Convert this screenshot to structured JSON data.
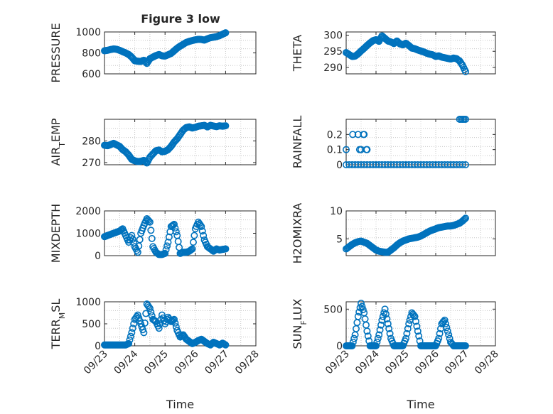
{
  "figure": {
    "title": "Figure 3 low",
    "series_color": "#0072BD",
    "axis_color": "#262626",
    "grid": "dotted minor grid on",
    "x_axis": {
      "label": "Time",
      "ticks": [
        "09/23",
        "09/24",
        "09/25",
        "09/26",
        "09/27",
        "09/28"
      ],
      "range_days": [
        0,
        5
      ],
      "note": "days measured from 09/23"
    }
  },
  "chart_data": [
    {
      "type": "scatter",
      "ylabel": "PRESSURE",
      "ylim": [
        600,
        1000
      ],
      "yticks": [
        "600",
        "800",
        "1000"
      ],
      "grid": true,
      "marker": "open-circle",
      "x": [
        0.0,
        0.1,
        0.2,
        0.3,
        0.4,
        0.5,
        0.6,
        0.7,
        0.8,
        0.9,
        1.0,
        1.1,
        1.2,
        1.3,
        1.4,
        1.5,
        1.6,
        1.7,
        1.8,
        1.9,
        2.0,
        2.1,
        2.2,
        2.3,
        2.4,
        2.5,
        2.6,
        2.7,
        2.8,
        2.9,
        3.0,
        3.1,
        3.2,
        3.3,
        3.4,
        3.5,
        3.6,
        3.7,
        3.8,
        3.9,
        4.0
      ],
      "values": [
        820,
        825,
        832,
        838,
        835,
        825,
        812,
        800,
        785,
        760,
        725,
        720,
        718,
        730,
        700,
        745,
        760,
        775,
        785,
        772,
        770,
        782,
        795,
        820,
        845,
        865,
        882,
        900,
        910,
        918,
        925,
        930,
        928,
        922,
        935,
        945,
        950,
        955,
        965,
        978,
        992
      ]
    },
    {
      "type": "scatter",
      "ylabel": "THETA",
      "ylim": [
        288,
        301
      ],
      "yticks": [
        "290",
        "295",
        "300"
      ],
      "grid": true,
      "marker": "open-circle",
      "x": [
        0.0,
        0.1,
        0.2,
        0.3,
        0.4,
        0.5,
        0.6,
        0.7,
        0.8,
        0.9,
        1.0,
        1.1,
        1.2,
        1.3,
        1.4,
        1.5,
        1.6,
        1.7,
        1.8,
        1.9,
        2.0,
        2.1,
        2.2,
        2.3,
        2.4,
        2.5,
        2.6,
        2.7,
        2.8,
        2.9,
        3.0,
        3.1,
        3.2,
        3.3,
        3.4,
        3.5,
        3.6,
        3.7,
        3.8,
        3.9,
        4.0
      ],
      "values": [
        294.6,
        294.0,
        293.4,
        293.5,
        294.2,
        295.1,
        295.9,
        296.8,
        297.6,
        298.3,
        298.6,
        298.1,
        299.8,
        299.0,
        298.2,
        297.9,
        297.4,
        298.2,
        297.3,
        297.0,
        297.5,
        296.8,
        296.0,
        295.8,
        295.4,
        295.1,
        294.8,
        294.4,
        294.1,
        293.9,
        293.4,
        293.6,
        293.2,
        293.0,
        292.8,
        292.6,
        292.9,
        292.7,
        292.0,
        290.6,
        288.7
      ]
    },
    {
      "type": "scatter",
      "ylabel": "AIR_TEMP",
      "ylim": [
        269,
        290
      ],
      "yticks": [
        "270",
        "280"
      ],
      "grid": true,
      "marker": "open-circle",
      "x": [
        0.0,
        0.1,
        0.2,
        0.3,
        0.4,
        0.5,
        0.6,
        0.7,
        0.8,
        0.9,
        1.0,
        1.1,
        1.2,
        1.3,
        1.4,
        1.5,
        1.6,
        1.7,
        1.8,
        1.9,
        2.0,
        2.1,
        2.2,
        2.3,
        2.4,
        2.5,
        2.6,
        2.7,
        2.8,
        2.9,
        3.0,
        3.1,
        3.2,
        3.3,
        3.4,
        3.5,
        3.6,
        3.7,
        3.8,
        3.9,
        4.0
      ],
      "values": [
        278.0,
        277.8,
        278.3,
        278.9,
        278.2,
        277.5,
        276.0,
        275.0,
        273.5,
        271.5,
        270.8,
        270.5,
        270.6,
        271.0,
        269.8,
        272.5,
        274.0,
        275.5,
        275.8,
        275.0,
        275.2,
        276.0,
        277.5,
        279.5,
        281.0,
        283.0,
        285.0,
        286.2,
        286.5,
        286.0,
        286.3,
        286.8,
        287.0,
        287.2,
        286.5,
        287.2,
        286.9,
        286.6,
        287.0,
        286.8,
        287.0
      ]
    },
    {
      "type": "scatter",
      "ylabel": "RAINFALL",
      "ylim": [
        0,
        0.3
      ],
      "yticks": [
        "0",
        "0.1",
        "0.2"
      ],
      "grid": true,
      "marker": "open-circle",
      "x": [
        0.0,
        0.1,
        0.2,
        0.3,
        0.4,
        0.5,
        0.6,
        0.7,
        0.8,
        0.9,
        1.0,
        1.1,
        1.2,
        1.3,
        1.4,
        1.5,
        1.6,
        1.7,
        1.8,
        1.9,
        2.0,
        2.1,
        2.2,
        2.3,
        2.4,
        2.5,
        2.6,
        2.7,
        2.8,
        2.9,
        3.0,
        3.1,
        3.2,
        3.3,
        3.4,
        3.5,
        3.6,
        3.7,
        3.8,
        3.9,
        4.0,
        0.0,
        0.22,
        0.4,
        0.45,
        0.5,
        0.58,
        0.6,
        0.68,
        0.7,
        3.8,
        3.85,
        3.9,
        3.95,
        4.0
      ],
      "values": [
        0,
        0,
        0,
        0,
        0,
        0,
        0,
        0,
        0,
        0,
        0,
        0,
        0,
        0,
        0,
        0,
        0,
        0,
        0,
        0,
        0,
        0,
        0,
        0,
        0,
        0,
        0,
        0,
        0,
        0,
        0,
        0,
        0,
        0,
        0,
        0,
        0,
        0,
        0,
        0,
        0,
        0.1,
        0.2,
        0.2,
        0.1,
        0.1,
        0.2,
        0.2,
        0.1,
        0.1,
        0.3,
        0.3,
        0.3,
        0.3,
        0.3
      ]
    },
    {
      "type": "scatter",
      "ylabel": "MIXDEPTH",
      "ylim": [
        0,
        2000
      ],
      "yticks": [
        "0",
        "1000",
        "2000"
      ],
      "grid": true,
      "marker": "open-circle",
      "x": [
        0.0,
        0.1,
        0.2,
        0.3,
        0.4,
        0.5,
        0.6,
        0.7,
        0.8,
        0.9,
        1.0,
        1.1,
        1.2,
        1.3,
        1.4,
        1.5,
        1.6,
        1.7,
        1.8,
        1.9,
        2.0,
        2.1,
        2.2,
        2.3,
        2.4,
        2.5,
        2.6,
        2.7,
        2.8,
        2.9,
        3.0,
        3.1,
        3.2,
        3.3,
        3.4,
        3.5,
        3.6,
        3.7,
        3.8,
        3.9,
        4.0
      ],
      "values": [
        850,
        900,
        950,
        1000,
        1050,
        1100,
        1200,
        900,
        600,
        900,
        400,
        150,
        1000,
        1350,
        1650,
        1500,
        400,
        150,
        50,
        50,
        100,
        600,
        1300,
        1400,
        900,
        100,
        150,
        150,
        200,
        300,
        1200,
        1500,
        1300,
        700,
        400,
        300,
        200,
        300,
        250,
        280,
        300
      ]
    },
    {
      "type": "scatter",
      "ylabel": "H2OMIXRA",
      "ylim": [
        2,
        10
      ],
      "yticks": [
        "5",
        "10"
      ],
      "grid": true,
      "marker": "open-circle",
      "x": [
        0.0,
        0.1,
        0.2,
        0.3,
        0.4,
        0.5,
        0.6,
        0.7,
        0.8,
        0.9,
        1.0,
        1.1,
        1.2,
        1.3,
        1.4,
        1.5,
        1.6,
        1.7,
        1.8,
        1.9,
        2.0,
        2.1,
        2.2,
        2.3,
        2.4,
        2.5,
        2.6,
        2.7,
        2.8,
        2.9,
        3.0,
        3.1,
        3.2,
        3.3,
        3.4,
        3.5,
        3.6,
        3.7,
        3.8,
        3.9,
        4.0
      ],
      "values": [
        3.2,
        3.6,
        4.0,
        4.3,
        4.5,
        4.6,
        4.4,
        4.2,
        3.8,
        3.4,
        3.0,
        2.8,
        2.7,
        2.6,
        2.6,
        3.0,
        3.4,
        3.9,
        4.3,
        4.6,
        4.8,
        5.0,
        5.1,
        5.2,
        5.3,
        5.5,
        5.8,
        6.1,
        6.4,
        6.6,
        6.8,
        7.0,
        7.1,
        7.2,
        7.3,
        7.3,
        7.4,
        7.6,
        7.8,
        8.2,
        8.7
      ]
    },
    {
      "type": "scatter",
      "ylabel": "TERR_MSL",
      "ylim": [
        0,
        1000
      ],
      "yticks": [
        "0",
        "500",
        "1000"
      ],
      "grid": true,
      "marker": "open-circle",
      "x": [
        0.0,
        0.1,
        0.2,
        0.3,
        0.4,
        0.5,
        0.6,
        0.7,
        0.8,
        0.9,
        1.0,
        1.1,
        1.2,
        1.3,
        1.4,
        1.5,
        1.6,
        1.7,
        1.8,
        1.9,
        2.0,
        2.1,
        2.2,
        2.3,
        2.4,
        2.5,
        2.6,
        2.7,
        2.8,
        2.9,
        3.0,
        3.1,
        3.2,
        3.3,
        3.4,
        3.5,
        3.6,
        3.7,
        3.8,
        3.9,
        4.0
      ],
      "values": [
        20,
        20,
        20,
        20,
        20,
        20,
        20,
        20,
        50,
        300,
        600,
        700,
        500,
        300,
        950,
        850,
        600,
        550,
        400,
        700,
        500,
        650,
        550,
        600,
        350,
        200,
        250,
        150,
        100,
        50,
        80,
        120,
        150,
        100,
        50,
        20,
        80,
        50,
        20,
        60,
        20
      ]
    },
    {
      "type": "scatter",
      "ylabel": "SUN_FLUX",
      "ylim": [
        0,
        600
      ],
      "yticks": [
        "0",
        "500"
      ],
      "grid": true,
      "marker": "open-circle",
      "x": [
        0.0,
        0.1,
        0.2,
        0.3,
        0.4,
        0.5,
        0.6,
        0.7,
        0.8,
        0.9,
        1.0,
        1.1,
        1.2,
        1.3,
        1.4,
        1.5,
        1.6,
        1.7,
        1.8,
        1.9,
        2.0,
        2.1,
        2.2,
        2.3,
        2.4,
        2.5,
        2.6,
        2.7,
        2.8,
        2.9,
        3.0,
        3.1,
        3.2,
        3.3,
        3.4,
        3.5,
        3.6,
        3.7,
        3.8,
        3.9,
        4.0
      ],
      "values": [
        0,
        0,
        0,
        150,
        400,
        580,
        450,
        200,
        0,
        0,
        0,
        150,
        350,
        500,
        300,
        100,
        0,
        0,
        0,
        0,
        100,
        300,
        450,
        400,
        200,
        0,
        0,
        0,
        0,
        0,
        0,
        100,
        300,
        350,
        200,
        50,
        0,
        0,
        0,
        0,
        0
      ]
    }
  ]
}
